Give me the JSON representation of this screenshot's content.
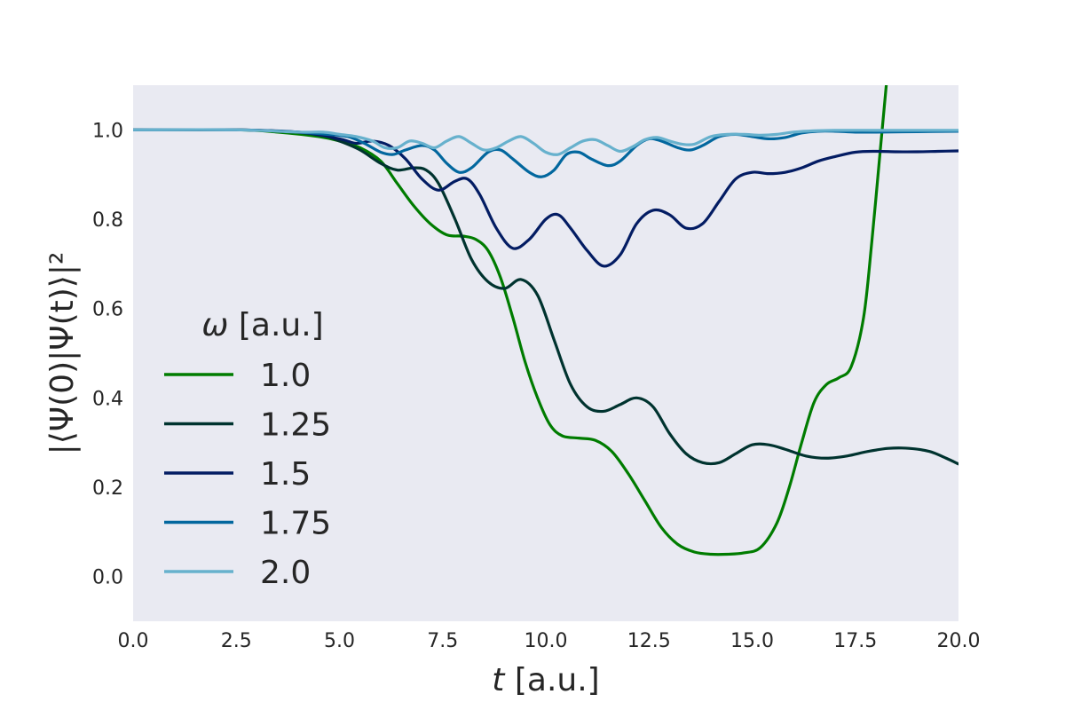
{
  "chart_data": {
    "type": "line",
    "xlabel_var": "t",
    "xlabel_unit": " [a.u.]",
    "ylabel": "|⟨Ψ(0)|Ψ(t)⟩|²",
    "xlim": [
      0,
      20
    ],
    "ylim": [
      -0.1,
      1.1
    ],
    "xticks": [
      "0.0",
      "2.5",
      "5.0",
      "7.5",
      "10.0",
      "12.5",
      "15.0",
      "17.5",
      "20.0"
    ],
    "yticks": [
      "0.0",
      "0.2",
      "0.4",
      "0.6",
      "0.8",
      "1.0"
    ],
    "grid": false,
    "background": "#e9eaf2",
    "legend": {
      "title_var": "ω",
      "title_unit": " [a.u.]",
      "placement": "center-left"
    },
    "series": [
      {
        "name": "1.0",
        "color": "#007c00",
        "points": [
          [
            0,
            1.0
          ],
          [
            2.5,
            1.0
          ],
          [
            3.5,
            0.995
          ],
          [
            4.5,
            0.985
          ],
          [
            5.0,
            0.975
          ],
          [
            5.5,
            0.96
          ],
          [
            6.0,
            0.93
          ],
          [
            6.4,
            0.88
          ],
          [
            6.8,
            0.83
          ],
          [
            7.2,
            0.79
          ],
          [
            7.6,
            0.765
          ],
          [
            8.0,
            0.762
          ],
          [
            8.3,
            0.755
          ],
          [
            8.6,
            0.73
          ],
          [
            8.9,
            0.67
          ],
          [
            9.2,
            0.58
          ],
          [
            9.5,
            0.48
          ],
          [
            9.8,
            0.4
          ],
          [
            10.1,
            0.34
          ],
          [
            10.4,
            0.315
          ],
          [
            10.8,
            0.31
          ],
          [
            11.2,
            0.305
          ],
          [
            11.6,
            0.28
          ],
          [
            12.0,
            0.23
          ],
          [
            12.4,
            0.17
          ],
          [
            12.8,
            0.11
          ],
          [
            13.2,
            0.072
          ],
          [
            13.6,
            0.055
          ],
          [
            14.0,
            0.05
          ],
          [
            14.4,
            0.05
          ],
          [
            14.8,
            0.053
          ],
          [
            15.2,
            0.065
          ],
          [
            15.6,
            0.12
          ],
          [
            15.9,
            0.2
          ],
          [
            16.2,
            0.3
          ],
          [
            16.5,
            0.39
          ],
          [
            16.8,
            0.43
          ],
          [
            17.1,
            0.445
          ],
          [
            17.4,
            0.47
          ],
          [
            17.7,
            0.58
          ],
          [
            17.9,
            0.75
          ],
          [
            18.1,
            0.95
          ],
          [
            18.25,
            1.1
          ]
        ]
      },
      {
        "name": "1.25",
        "color": "#00332f",
        "points": [
          [
            0,
            1.0
          ],
          [
            2.5,
            1.0
          ],
          [
            3.5,
            0.997
          ],
          [
            4.5,
            0.99
          ],
          [
            5.0,
            0.975
          ],
          [
            5.5,
            0.955
          ],
          [
            6.0,
            0.925
          ],
          [
            6.4,
            0.91
          ],
          [
            6.8,
            0.915
          ],
          [
            7.1,
            0.91
          ],
          [
            7.4,
            0.88
          ],
          [
            7.8,
            0.8
          ],
          [
            8.2,
            0.71
          ],
          [
            8.6,
            0.66
          ],
          [
            9.0,
            0.645
          ],
          [
            9.4,
            0.665
          ],
          [
            9.8,
            0.63
          ],
          [
            10.2,
            0.53
          ],
          [
            10.6,
            0.43
          ],
          [
            11.0,
            0.38
          ],
          [
            11.4,
            0.37
          ],
          [
            11.8,
            0.385
          ],
          [
            12.2,
            0.4
          ],
          [
            12.6,
            0.38
          ],
          [
            13.0,
            0.32
          ],
          [
            13.4,
            0.275
          ],
          [
            13.8,
            0.255
          ],
          [
            14.2,
            0.255
          ],
          [
            14.6,
            0.275
          ],
          [
            15.0,
            0.295
          ],
          [
            15.4,
            0.295
          ],
          [
            15.8,
            0.285
          ],
          [
            16.3,
            0.27
          ],
          [
            16.8,
            0.265
          ],
          [
            17.3,
            0.27
          ],
          [
            17.8,
            0.28
          ],
          [
            18.3,
            0.287
          ],
          [
            18.8,
            0.287
          ],
          [
            19.3,
            0.28
          ],
          [
            19.7,
            0.265
          ],
          [
            20.0,
            0.252
          ]
        ]
      },
      {
        "name": "1.5",
        "color": "#031c63",
        "points": [
          [
            0,
            1.0
          ],
          [
            2.5,
            1.0
          ],
          [
            4.0,
            0.995
          ],
          [
            5.0,
            0.98
          ],
          [
            5.4,
            0.97
          ],
          [
            5.8,
            0.975
          ],
          [
            6.2,
            0.965
          ],
          [
            6.6,
            0.935
          ],
          [
            7.0,
            0.89
          ],
          [
            7.4,
            0.865
          ],
          [
            7.8,
            0.885
          ],
          [
            8.1,
            0.89
          ],
          [
            8.4,
            0.855
          ],
          [
            8.8,
            0.78
          ],
          [
            9.2,
            0.735
          ],
          [
            9.6,
            0.755
          ],
          [
            10.0,
            0.8
          ],
          [
            10.3,
            0.81
          ],
          [
            10.6,
            0.78
          ],
          [
            11.0,
            0.73
          ],
          [
            11.4,
            0.695
          ],
          [
            11.8,
            0.72
          ],
          [
            12.2,
            0.79
          ],
          [
            12.6,
            0.82
          ],
          [
            13.0,
            0.81
          ],
          [
            13.4,
            0.78
          ],
          [
            13.8,
            0.79
          ],
          [
            14.2,
            0.84
          ],
          [
            14.6,
            0.89
          ],
          [
            15.0,
            0.905
          ],
          [
            15.4,
            0.902
          ],
          [
            15.8,
            0.905
          ],
          [
            16.2,
            0.915
          ],
          [
            16.6,
            0.93
          ],
          [
            17.0,
            0.94
          ],
          [
            17.5,
            0.95
          ],
          [
            18.0,
            0.952
          ],
          [
            18.5,
            0.951
          ],
          [
            19.0,
            0.951
          ],
          [
            19.5,
            0.952
          ],
          [
            20.0,
            0.953
          ]
        ]
      },
      {
        "name": "1.75",
        "color": "#02679e",
        "points": [
          [
            0,
            1.0
          ],
          [
            2.5,
            1.0
          ],
          [
            4.0,
            0.995
          ],
          [
            4.7,
            0.99
          ],
          [
            5.2,
            0.985
          ],
          [
            5.6,
            0.97
          ],
          [
            6.0,
            0.95
          ],
          [
            6.3,
            0.945
          ],
          [
            6.6,
            0.955
          ],
          [
            7.0,
            0.965
          ],
          [
            7.3,
            0.955
          ],
          [
            7.6,
            0.925
          ],
          [
            7.9,
            0.905
          ],
          [
            8.2,
            0.915
          ],
          [
            8.6,
            0.95
          ],
          [
            8.9,
            0.955
          ],
          [
            9.2,
            0.935
          ],
          [
            9.6,
            0.905
          ],
          [
            9.9,
            0.895
          ],
          [
            10.2,
            0.91
          ],
          [
            10.5,
            0.945
          ],
          [
            10.8,
            0.95
          ],
          [
            11.1,
            0.935
          ],
          [
            11.5,
            0.92
          ],
          [
            11.8,
            0.93
          ],
          [
            12.2,
            0.965
          ],
          [
            12.5,
            0.98
          ],
          [
            12.8,
            0.975
          ],
          [
            13.2,
            0.96
          ],
          [
            13.5,
            0.955
          ],
          [
            13.8,
            0.965
          ],
          [
            14.2,
            0.985
          ],
          [
            14.6,
            0.99
          ],
          [
            15.0,
            0.985
          ],
          [
            15.4,
            0.98
          ],
          [
            15.8,
            0.983
          ],
          [
            16.2,
            0.993
          ],
          [
            16.6,
            0.997
          ],
          [
            17.0,
            0.997
          ],
          [
            17.5,
            0.995
          ],
          [
            18.0,
            0.995
          ],
          [
            19.0,
            0.996
          ],
          [
            20.0,
            0.997
          ]
        ]
      },
      {
        "name": "2.0",
        "color": "#67b1cd",
        "points": [
          [
            0,
            1.0
          ],
          [
            2.5,
            1.0
          ],
          [
            4.0,
            0.995
          ],
          [
            4.6,
            0.995
          ],
          [
            5.0,
            0.99
          ],
          [
            5.4,
            0.985
          ],
          [
            5.8,
            0.975
          ],
          [
            6.1,
            0.96
          ],
          [
            6.4,
            0.96
          ],
          [
            6.7,
            0.975
          ],
          [
            7.0,
            0.97
          ],
          [
            7.3,
            0.96
          ],
          [
            7.6,
            0.975
          ],
          [
            7.9,
            0.985
          ],
          [
            8.2,
            0.97
          ],
          [
            8.5,
            0.955
          ],
          [
            8.8,
            0.96
          ],
          [
            9.1,
            0.975
          ],
          [
            9.4,
            0.985
          ],
          [
            9.7,
            0.97
          ],
          [
            10.0,
            0.95
          ],
          [
            10.3,
            0.945
          ],
          [
            10.6,
            0.96
          ],
          [
            10.9,
            0.975
          ],
          [
            11.2,
            0.978
          ],
          [
            11.5,
            0.965
          ],
          [
            11.8,
            0.952
          ],
          [
            12.1,
            0.962
          ],
          [
            12.4,
            0.978
          ],
          [
            12.7,
            0.983
          ],
          [
            13.0,
            0.975
          ],
          [
            13.3,
            0.968
          ],
          [
            13.6,
            0.968
          ],
          [
            14.0,
            0.985
          ],
          [
            14.4,
            0.99
          ],
          [
            14.8,
            0.99
          ],
          [
            15.2,
            0.988
          ],
          [
            15.6,
            0.99
          ],
          [
            16.0,
            0.995
          ],
          [
            16.5,
            0.998
          ],
          [
            17.0,
            0.999
          ],
          [
            18.0,
            0.999
          ],
          [
            19.0,
            0.999
          ],
          [
            20.0,
            0.999
          ]
        ]
      }
    ]
  }
}
